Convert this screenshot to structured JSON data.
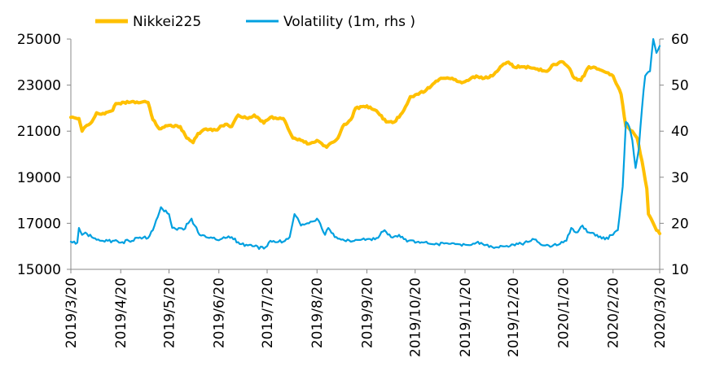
{
  "chart_data": {
    "type": "line",
    "title": "",
    "xlabel": "",
    "ylabel": "",
    "y2label": "",
    "grid": false,
    "legend_position": "top",
    "x_range": [
      "2019-03-20",
      "2020-03-20"
    ],
    "ylim": [
      15000,
      25000
    ],
    "y2lim": [
      10,
      60
    ],
    "x_tick_labels": [
      "2019/3/20",
      "2019/4/20",
      "2019/5/20",
      "2019/6/20",
      "2019/7/20",
      "2019/8/20",
      "2019/9/20",
      "2019/10/20",
      "2019/11/20",
      "2019/12/20",
      "2020/1/20",
      "2020/2/20",
      "2020/3/20"
    ],
    "y_tick_labels": [
      "15000",
      "17000",
      "19000",
      "21000",
      "23000",
      "25000"
    ],
    "y2_tick_labels": [
      "10",
      "20",
      "30",
      "40",
      "50",
      "60"
    ],
    "series": [
      {
        "name": "Nikkei225",
        "axis": "left",
        "color": "#FFC000",
        "points": [
          [
            "2019-03-20",
            21600
          ],
          [
            "2019-03-25",
            21550
          ],
          [
            "2019-03-27",
            21000
          ],
          [
            "2019-03-29",
            21200
          ],
          [
            "2019-04-02",
            21400
          ],
          [
            "2019-04-05",
            21800
          ],
          [
            "2019-04-10",
            21750
          ],
          [
            "2019-04-15",
            21900
          ],
          [
            "2019-04-17",
            22200
          ],
          [
            "2019-04-22",
            22250
          ],
          [
            "2019-05-07",
            22250
          ],
          [
            "2019-05-10",
            21500
          ],
          [
            "2019-05-14",
            21100
          ],
          [
            "2019-05-20",
            21250
          ],
          [
            "2019-05-27",
            21200
          ],
          [
            "2019-05-31",
            20700
          ],
          [
            "2019-06-04",
            20500
          ],
          [
            "2019-06-07",
            20900
          ],
          [
            "2019-06-12",
            21100
          ],
          [
            "2019-06-18",
            21050
          ],
          [
            "2019-06-24",
            21300
          ],
          [
            "2019-06-28",
            21200
          ],
          [
            "2019-07-02",
            21700
          ],
          [
            "2019-07-08",
            21550
          ],
          [
            "2019-07-12",
            21700
          ],
          [
            "2019-07-18",
            21350
          ],
          [
            "2019-07-22",
            21600
          ],
          [
            "2019-07-30",
            21550
          ],
          [
            "2019-08-05",
            20700
          ],
          [
            "2019-08-10",
            20600
          ],
          [
            "2019-08-15",
            20450
          ],
          [
            "2019-08-20",
            20600
          ],
          [
            "2019-08-26",
            20300
          ],
          [
            "2019-09-02",
            20700
          ],
          [
            "2019-09-05",
            21200
          ],
          [
            "2019-09-10",
            21500
          ],
          [
            "2019-09-13",
            22000
          ],
          [
            "2019-09-20",
            22100
          ],
          [
            "2019-09-27",
            21800
          ],
          [
            "2019-10-02",
            21400
          ],
          [
            "2019-10-07",
            21400
          ],
          [
            "2019-10-12",
            21800
          ],
          [
            "2019-10-17",
            22500
          ],
          [
            "2019-10-22",
            22600
          ],
          [
            "2019-10-27",
            22800
          ],
          [
            "2019-11-05",
            23300
          ],
          [
            "2019-11-12",
            23300
          ],
          [
            "2019-11-18",
            23100
          ],
          [
            "2019-11-22",
            23200
          ],
          [
            "2019-11-27",
            23400
          ],
          [
            "2019-12-02",
            23300
          ],
          [
            "2019-12-07",
            23400
          ],
          [
            "2019-12-12",
            23800
          ],
          [
            "2019-12-17",
            24000
          ],
          [
            "2019-12-20",
            23800
          ],
          [
            "2019-12-27",
            23800
          ],
          [
            "2020-01-03",
            23700
          ],
          [
            "2020-01-10",
            23600
          ],
          [
            "2020-01-14",
            23900
          ],
          [
            "2020-01-20",
            24000
          ],
          [
            "2020-01-23",
            23800
          ],
          [
            "2020-01-27",
            23300
          ],
          [
            "2020-01-31",
            23200
          ],
          [
            "2020-02-05",
            23800
          ],
          [
            "2020-02-10",
            23700
          ],
          [
            "2020-02-14",
            23600
          ],
          [
            "2020-02-20",
            23400
          ],
          [
            "2020-02-25",
            22600
          ],
          [
            "2020-02-28",
            21200
          ],
          [
            "2020-03-03",
            21000
          ],
          [
            "2020-03-06",
            20700
          ],
          [
            "2020-03-09",
            19700
          ],
          [
            "2020-03-12",
            18500
          ],
          [
            "2020-03-13",
            17400
          ],
          [
            "2020-03-16",
            17000
          ],
          [
            "2020-03-18",
            16700
          ],
          [
            "2020-03-20",
            16550
          ]
        ]
      },
      {
        "name": "Volatility (1m, rhs )",
        "axis": "right",
        "color": "#00A0E0",
        "points": [
          [
            "2019-03-20",
            16.0
          ],
          [
            "2019-03-24",
            15.8
          ],
          [
            "2019-03-25",
            19.0
          ],
          [
            "2019-03-27",
            17.5
          ],
          [
            "2019-03-29",
            18.0
          ],
          [
            "2019-04-02",
            17.0
          ],
          [
            "2019-04-08",
            16.2
          ],
          [
            "2019-04-15",
            16.2
          ],
          [
            "2019-04-20",
            15.8
          ],
          [
            "2019-04-25",
            16.2
          ],
          [
            "2019-05-01",
            16.8
          ],
          [
            "2019-05-07",
            16.8
          ],
          [
            "2019-05-11",
            19.5
          ],
          [
            "2019-05-15",
            23.5
          ],
          [
            "2019-05-20",
            22.0
          ],
          [
            "2019-05-22",
            19.0
          ],
          [
            "2019-05-29",
            18.6
          ],
          [
            "2019-06-01",
            20.0
          ],
          [
            "2019-06-03",
            21.0
          ],
          [
            "2019-06-05",
            19.5
          ],
          [
            "2019-06-08",
            17.5
          ],
          [
            "2019-06-12",
            17.0
          ],
          [
            "2019-06-18",
            16.5
          ],
          [
            "2019-06-24",
            16.8
          ],
          [
            "2019-06-28",
            17.0
          ],
          [
            "2019-07-03",
            15.5
          ],
          [
            "2019-07-08",
            15.2
          ],
          [
            "2019-07-12",
            15.0
          ],
          [
            "2019-07-18",
            14.5
          ],
          [
            "2019-07-22",
            16.2
          ],
          [
            "2019-07-30",
            16.0
          ],
          [
            "2019-08-03",
            17.0
          ],
          [
            "2019-08-06",
            22.0
          ],
          [
            "2019-08-10",
            19.5
          ],
          [
            "2019-08-15",
            20.0
          ],
          [
            "2019-08-20",
            21.0
          ],
          [
            "2019-08-25",
            17.5
          ],
          [
            "2019-08-27",
            19.0
          ],
          [
            "2019-08-31",
            17.0
          ],
          [
            "2019-09-05",
            16.5
          ],
          [
            "2019-09-10",
            16.0
          ],
          [
            "2019-09-17",
            16.5
          ],
          [
            "2019-09-25",
            16.5
          ],
          [
            "2019-10-01",
            18.5
          ],
          [
            "2019-10-05",
            17.0
          ],
          [
            "2019-10-10",
            17.5
          ],
          [
            "2019-10-15",
            16.0
          ],
          [
            "2019-10-22",
            16.0
          ],
          [
            "2019-10-30",
            15.5
          ],
          [
            "2019-11-07",
            15.6
          ],
          [
            "2019-11-15",
            15.5
          ],
          [
            "2019-11-21",
            15.3
          ],
          [
            "2019-11-28",
            16.0
          ],
          [
            "2019-12-03",
            15.3
          ],
          [
            "2019-12-10",
            14.8
          ],
          [
            "2019-12-15",
            15.0
          ],
          [
            "2019-12-21",
            15.2
          ],
          [
            "2019-12-27",
            15.8
          ],
          [
            "2020-01-02",
            16.5
          ],
          [
            "2020-01-08",
            15.2
          ],
          [
            "2020-01-13",
            15.0
          ],
          [
            "2020-01-18",
            15.5
          ],
          [
            "2020-01-22",
            16.2
          ],
          [
            "2020-01-25",
            19.0
          ],
          [
            "2020-01-28",
            18.0
          ],
          [
            "2020-02-01",
            19.5
          ],
          [
            "2020-02-05",
            18.0
          ],
          [
            "2020-02-10",
            17.5
          ],
          [
            "2020-02-15",
            16.5
          ],
          [
            "2020-02-20",
            17.5
          ],
          [
            "2020-02-23",
            18.5
          ],
          [
            "2020-02-26",
            28.0
          ],
          [
            "2020-02-28",
            42.0
          ],
          [
            "2020-03-01",
            41.0
          ],
          [
            "2020-03-03",
            38.0
          ],
          [
            "2020-03-05",
            32.0
          ],
          [
            "2020-03-07",
            36.0
          ],
          [
            "2020-03-09",
            45.0
          ],
          [
            "2020-03-11",
            52.0
          ],
          [
            "2020-03-14",
            53.0
          ],
          [
            "2020-03-16",
            60.0
          ],
          [
            "2020-03-18",
            57.0
          ],
          [
            "2020-03-20",
            58.5
          ]
        ]
      }
    ]
  }
}
